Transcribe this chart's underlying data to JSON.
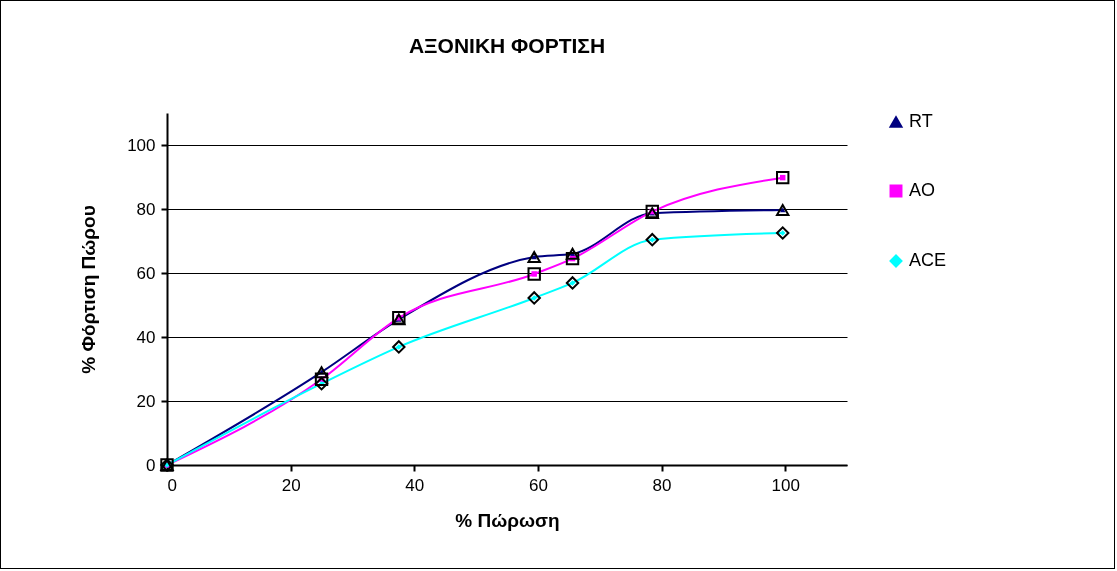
{
  "chart_data": {
    "type": "line",
    "title": "ΑΞΟΝΙΚΗ  ΦΟΡΤΙΣΗ",
    "xlabel": "% Πώρωση",
    "ylabel": "% Φόρτιση Πώρου",
    "x": [
      0,
      25,
      37.5,
      59.4,
      65.6,
      78.5,
      99.6
    ],
    "series": [
      {
        "name": "RT",
        "color": "#000080",
        "marker": "triangle",
        "values": [
          0,
          29,
          45.5,
          65,
          66,
          78.7,
          79.7
        ]
      },
      {
        "name": "AO",
        "color": "#ff00ff",
        "marker": "square",
        "values": [
          0,
          26.8,
          46,
          59.7,
          64.5,
          79.2,
          89.8
        ]
      },
      {
        "name": "ACE",
        "color": "#00ffff",
        "marker": "diamond",
        "values": [
          0,
          25.4,
          36.9,
          52.2,
          56.9,
          70.4,
          72.5
        ]
      }
    ],
    "xlim": [
      0,
      110
    ],
    "xticks": [
      0,
      20,
      40,
      60,
      80,
      100
    ],
    "ylim": [
      0,
      110
    ],
    "yticks": [
      0,
      20,
      40,
      60,
      80,
      100
    ],
    "grid": "y",
    "legend": "right",
    "line_style": "solid"
  }
}
